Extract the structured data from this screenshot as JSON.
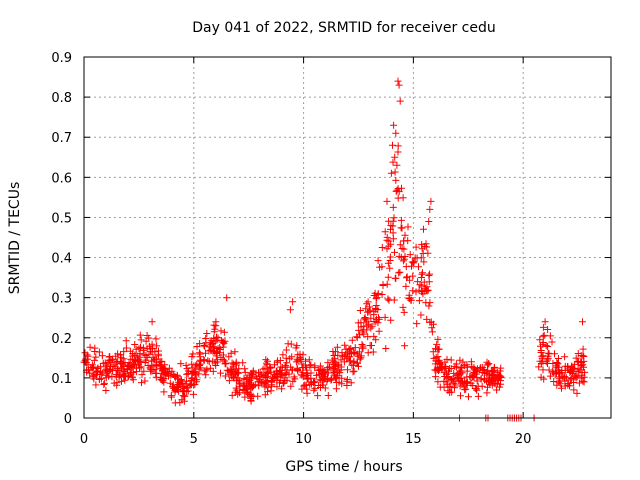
{
  "chart_data": {
    "type": "scatter",
    "title": "Day 041 of 2022, SRMTID for receiver cedu",
    "xlabel": "GPS time / hours",
    "ylabel": "SRMTID / TECUs",
    "xlim": [
      0,
      24
    ],
    "ylim": [
      0,
      0.9
    ],
    "xticks": [
      0,
      5,
      10,
      15,
      20
    ],
    "xtick_labels": [
      "0",
      "5",
      "10",
      "15",
      "20"
    ],
    "yticks": [
      0,
      0.1,
      0.2,
      0.3,
      0.4,
      0.5,
      0.6,
      0.7,
      0.8,
      0.9
    ],
    "ytick_labels": [
      "0",
      "0.1",
      "0.2",
      "0.3",
      "0.4",
      "0.5",
      "0.6",
      "0.7",
      "0.8",
      "0.9"
    ],
    "grid": true,
    "marker": "+",
    "color": "#ff0000",
    "profile": [
      [
        0.0,
        0.14,
        0.04
      ],
      [
        0.5,
        0.13,
        0.05
      ],
      [
        1.0,
        0.12,
        0.04
      ],
      [
        1.5,
        0.13,
        0.04
      ],
      [
        2.0,
        0.13,
        0.04
      ],
      [
        2.5,
        0.15,
        0.04
      ],
      [
        3.0,
        0.16,
        0.05
      ],
      [
        3.5,
        0.13,
        0.04
      ],
      [
        4.0,
        0.09,
        0.04
      ],
      [
        4.5,
        0.08,
        0.04
      ],
      [
        5.0,
        0.11,
        0.04
      ],
      [
        5.5,
        0.16,
        0.04
      ],
      [
        6.0,
        0.18,
        0.05
      ],
      [
        6.5,
        0.15,
        0.05
      ],
      [
        7.0,
        0.1,
        0.04
      ],
      [
        7.5,
        0.07,
        0.03
      ],
      [
        8.0,
        0.09,
        0.04
      ],
      [
        8.5,
        0.11,
        0.04
      ],
      [
        9.0,
        0.11,
        0.04
      ],
      [
        9.5,
        0.15,
        0.06
      ],
      [
        10.0,
        0.11,
        0.04
      ],
      [
        10.5,
        0.09,
        0.04
      ],
      [
        11.0,
        0.11,
        0.04
      ],
      [
        11.5,
        0.12,
        0.05
      ],
      [
        12.0,
        0.14,
        0.05
      ],
      [
        12.5,
        0.18,
        0.06
      ],
      [
        13.0,
        0.24,
        0.08
      ],
      [
        13.5,
        0.3,
        0.1
      ],
      [
        14.0,
        0.42,
        0.14
      ],
      [
        14.25,
        0.55,
        0.15
      ],
      [
        14.5,
        0.4,
        0.14
      ],
      [
        15.0,
        0.33,
        0.09
      ],
      [
        15.5,
        0.36,
        0.1
      ],
      [
        15.75,
        0.3,
        0.1
      ],
      [
        16.0,
        0.14,
        0.05
      ],
      [
        16.5,
        0.11,
        0.04
      ],
      [
        17.0,
        0.1,
        0.04
      ],
      [
        17.5,
        0.1,
        0.04
      ],
      [
        18.0,
        0.1,
        0.04
      ],
      [
        18.5,
        0.11,
        0.04
      ],
      [
        19.0,
        0.1,
        0.03
      ]
    ],
    "gaps": [
      [
        19.0,
        20.7
      ]
    ],
    "data_end": 22.8,
    "tail_profile": [
      [
        20.7,
        0.15,
        0.05
      ],
      [
        21.2,
        0.16,
        0.05
      ],
      [
        21.7,
        0.1,
        0.04
      ],
      [
        22.2,
        0.11,
        0.04
      ],
      [
        22.8,
        0.12,
        0.05
      ]
    ],
    "highlighted_points": [
      {
        "x": 14.3,
        "y": 0.84
      },
      {
        "x": 14.35,
        "y": 0.83
      },
      {
        "x": 14.4,
        "y": 0.79
      },
      {
        "x": 14.1,
        "y": 0.73
      },
      {
        "x": 14.2,
        "y": 0.71
      },
      {
        "x": 14.05,
        "y": 0.68
      },
      {
        "x": 14.15,
        "y": 0.65
      },
      {
        "x": 14.25,
        "y": 0.63
      },
      {
        "x": 14.0,
        "y": 0.61
      },
      {
        "x": 13.8,
        "y": 0.54
      },
      {
        "x": 15.8,
        "y": 0.54
      },
      {
        "x": 15.75,
        "y": 0.52
      },
      {
        "x": 15.7,
        "y": 0.49
      },
      {
        "x": 6.5,
        "y": 0.3
      },
      {
        "x": 9.5,
        "y": 0.29
      },
      {
        "x": 9.4,
        "y": 0.27
      },
      {
        "x": 21.0,
        "y": 0.24
      },
      {
        "x": 22.7,
        "y": 0.24
      },
      {
        "x": 3.1,
        "y": 0.24
      },
      {
        "x": 14.6,
        "y": 0.18
      }
    ],
    "zero_points_x": [
      17.1,
      18.3,
      18.4,
      19.3,
      19.4,
      19.5,
      19.6,
      19.7,
      19.8,
      19.9,
      20.5
    ],
    "point_count": 1400
  }
}
